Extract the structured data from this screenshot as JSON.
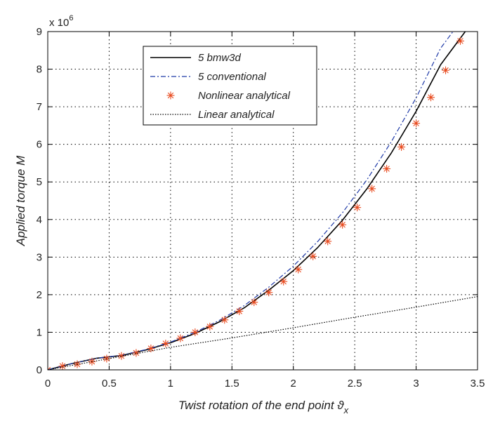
{
  "chart_data": {
    "type": "line",
    "title": "",
    "xlabel": "Twist rotation of the end point ϑ",
    "xlabel_subscript": "x",
    "ylabel": "Applied torque M",
    "y_multiplier_base": "x 10",
    "y_multiplier_exponent": "6",
    "xlim": [
      0,
      3.5
    ],
    "ylim": [
      0,
      9
    ],
    "x_ticks": [
      0,
      0.5,
      1,
      1.5,
      2,
      2.5,
      3,
      3.5
    ],
    "x_tick_labels": [
      "0",
      "0.5",
      "1",
      "1.5",
      "2",
      "2.5",
      "3",
      "3.5"
    ],
    "y_ticks": [
      0,
      1,
      2,
      3,
      4,
      5,
      6,
      7,
      8,
      9
    ],
    "y_tick_labels": [
      "0",
      "1",
      "2",
      "3",
      "4",
      "5",
      "6",
      "7",
      "8",
      "9"
    ],
    "grid": true,
    "legend_position": "top-center",
    "series": [
      {
        "name": "5 bmw3d",
        "style": "solid",
        "color": "#000000",
        "x": [
          0,
          0.2,
          0.4,
          0.6,
          0.8,
          1.0,
          1.2,
          1.4,
          1.6,
          1.8,
          2.0,
          2.2,
          2.4,
          2.6,
          2.8,
          3.0,
          3.2,
          3.4
        ],
        "y": [
          0,
          0.17,
          0.31,
          0.38,
          0.53,
          0.72,
          0.97,
          1.28,
          1.65,
          2.12,
          2.64,
          3.26,
          3.98,
          4.82,
          5.78,
          6.88,
          8.12,
          9.0
        ]
      },
      {
        "name": "5 conventional",
        "style": "dashdot",
        "color": "#1f3aa8",
        "x": [
          0,
          0.2,
          0.4,
          0.6,
          0.8,
          1.0,
          1.2,
          1.4,
          1.6,
          1.8,
          2.0,
          2.2,
          2.4,
          2.6,
          2.8,
          3.0,
          3.2,
          3.3
        ],
        "y": [
          0,
          0.17,
          0.31,
          0.39,
          0.54,
          0.74,
          1.0,
          1.32,
          1.71,
          2.2,
          2.76,
          3.42,
          4.18,
          5.06,
          6.08,
          7.24,
          8.56,
          9.0
        ]
      },
      {
        "name": "Nonlinear analytical",
        "style": "marker-asterisk",
        "color": "#e84a1e",
        "x": [
          0,
          0.12,
          0.24,
          0.36,
          0.48,
          0.6,
          0.72,
          0.84,
          0.96,
          1.08,
          1.2,
          1.32,
          1.44,
          1.56,
          1.68,
          1.8,
          1.92,
          2.04,
          2.16,
          2.28,
          2.4,
          2.52,
          2.64,
          2.76,
          2.88,
          3.0,
          3.12,
          3.24,
          3.36
        ],
        "y": [
          0,
          0.1,
          0.15,
          0.22,
          0.3,
          0.37,
          0.45,
          0.57,
          0.7,
          0.84,
          1.0,
          1.15,
          1.33,
          1.56,
          1.8,
          2.06,
          2.35,
          2.67,
          3.02,
          3.42,
          3.86,
          4.32,
          4.82,
          5.35,
          5.93,
          6.56,
          7.25,
          7.97,
          8.75
        ]
      },
      {
        "name": "Linear analytical",
        "style": "dotted",
        "color": "#000000",
        "x": [
          0,
          0.5,
          1.0,
          1.5,
          2.0,
          2.5,
          3.0,
          3.5
        ],
        "y": [
          0,
          0.3,
          0.6,
          0.85,
          1.12,
          1.4,
          1.67,
          1.95
        ]
      }
    ]
  }
}
